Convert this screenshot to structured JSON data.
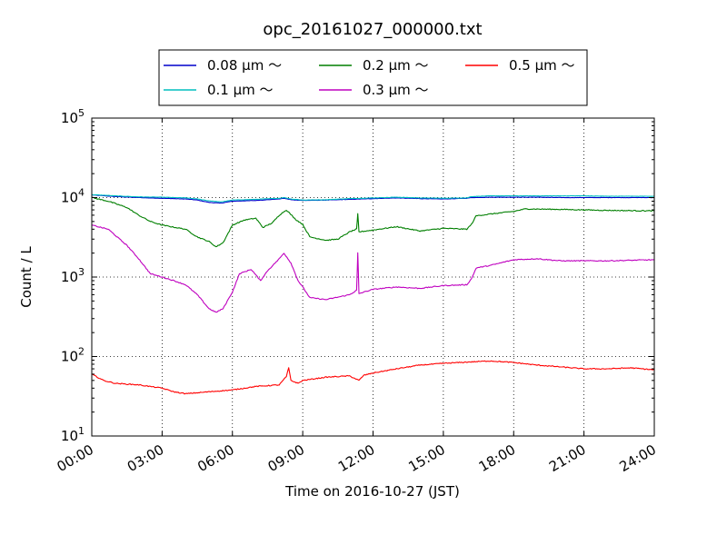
{
  "chart_data": {
    "type": "line",
    "title": "opc_20161027_000000.txt",
    "xlabel": "Time on 2016-10-27 (JST)",
    "ylabel": "Count / L",
    "x_unit": "hour of day",
    "xlim": [
      0,
      24
    ],
    "ylim": [
      10,
      100000
    ],
    "yscale": "log",
    "grid": true,
    "legend_position": "top-center",
    "x_tick_labels": [
      "00:00",
      "03:00",
      "06:00",
      "09:00",
      "12:00",
      "15:00",
      "18:00",
      "21:00",
      "24:00"
    ],
    "y_tick_labels": [
      {
        "base": "10",
        "exp": "1"
      },
      {
        "base": "10",
        "exp": "2"
      },
      {
        "base": "10",
        "exp": "3"
      },
      {
        "base": "10",
        "exp": "4"
      },
      {
        "base": "10",
        "exp": "5"
      }
    ],
    "series": [
      {
        "name": "0.08 μm ～",
        "color": "#0000cc",
        "points": [
          [
            0,
            10800
          ],
          [
            1,
            10300
          ],
          [
            2,
            10000
          ],
          [
            3,
            9800
          ],
          [
            4,
            9600
          ],
          [
            4.5,
            9300
          ],
          [
            5,
            8700
          ],
          [
            5.5,
            8500
          ],
          [
            6,
            9000
          ],
          [
            7,
            9200
          ],
          [
            8,
            9600
          ],
          [
            8.2,
            9800
          ],
          [
            8.5,
            9400
          ],
          [
            9,
            9200
          ],
          [
            10,
            9300
          ],
          [
            11,
            9500
          ],
          [
            12,
            9700
          ],
          [
            13,
            9900
          ],
          [
            14,
            9700
          ],
          [
            15,
            9600
          ],
          [
            16,
            9800
          ],
          [
            16.2,
            10000
          ],
          [
            17,
            10100
          ],
          [
            18,
            10100
          ],
          [
            19,
            10100
          ],
          [
            20,
            10000
          ],
          [
            21,
            10000
          ],
          [
            22,
            10000
          ],
          [
            23,
            10000
          ],
          [
            24,
            10000
          ]
        ]
      },
      {
        "name": "0.1 μm ～",
        "color": "#00bfbf",
        "points": [
          [
            0,
            10900
          ],
          [
            1,
            10500
          ],
          [
            2,
            10200
          ],
          [
            3,
            10100
          ],
          [
            4,
            9900
          ],
          [
            4.5,
            9600
          ],
          [
            5,
            9100
          ],
          [
            5.5,
            8800
          ],
          [
            6,
            9300
          ],
          [
            7,
            9500
          ],
          [
            8,
            9800
          ],
          [
            8.2,
            10000
          ],
          [
            8.5,
            9600
          ],
          [
            9,
            9300
          ],
          [
            10,
            9400
          ],
          [
            11,
            9700
          ],
          [
            12,
            9900
          ],
          [
            13,
            10100
          ],
          [
            14,
            9900
          ],
          [
            15,
            9800
          ],
          [
            16,
            9900
          ],
          [
            16.2,
            10300
          ],
          [
            17,
            10500
          ],
          [
            18,
            10500
          ],
          [
            19,
            10500
          ],
          [
            20,
            10500
          ],
          [
            21,
            10500
          ],
          [
            22,
            10400
          ],
          [
            23,
            10400
          ],
          [
            24,
            10400
          ]
        ]
      },
      {
        "name": "0.2 μm ～",
        "color": "#007f00",
        "points": [
          [
            0,
            10000
          ],
          [
            0.7,
            9000
          ],
          [
            1.5,
            7500
          ],
          [
            2,
            6000
          ],
          [
            2.5,
            5000
          ],
          [
            3,
            4500
          ],
          [
            4,
            4000
          ],
          [
            4.5,
            3200
          ],
          [
            5,
            2800
          ],
          [
            5.3,
            2400
          ],
          [
            5.6,
            2700
          ],
          [
            6,
            4500
          ],
          [
            6.5,
            5200
          ],
          [
            7,
            5500
          ],
          [
            7.3,
            4200
          ],
          [
            7.7,
            4800
          ],
          [
            8,
            6000
          ],
          [
            8.3,
            7000
          ],
          [
            8.7,
            5300
          ],
          [
            9,
            4600
          ],
          [
            9.3,
            3200
          ],
          [
            10,
            2900
          ],
          [
            10.5,
            3000
          ],
          [
            11,
            3700
          ],
          [
            11.3,
            4000
          ],
          [
            11.35,
            6200
          ],
          [
            11.4,
            3700
          ],
          [
            12,
            3900
          ],
          [
            13,
            4300
          ],
          [
            14,
            3800
          ],
          [
            15,
            4100
          ],
          [
            16,
            4000
          ],
          [
            16.2,
            4600
          ],
          [
            16.4,
            5900
          ],
          [
            17,
            6200
          ],
          [
            18,
            6700
          ],
          [
            18.5,
            7200
          ],
          [
            20,
            7100
          ],
          [
            22,
            6900
          ],
          [
            24,
            6800
          ]
        ]
      },
      {
        "name": "0.3 μm ～",
        "color": "#bf00bf",
        "points": [
          [
            0,
            4500
          ],
          [
            0.7,
            4000
          ],
          [
            1.5,
            2500
          ],
          [
            2,
            1700
          ],
          [
            2.5,
            1100
          ],
          [
            3,
            1000
          ],
          [
            3.5,
            900
          ],
          [
            4,
            800
          ],
          [
            4.5,
            600
          ],
          [
            5,
            400
          ],
          [
            5.3,
            360
          ],
          [
            5.6,
            400
          ],
          [
            6,
            650
          ],
          [
            6.3,
            1100
          ],
          [
            6.8,
            1250
          ],
          [
            7.2,
            900
          ],
          [
            7.5,
            1200
          ],
          [
            8,
            1700
          ],
          [
            8.2,
            2000
          ],
          [
            8.5,
            1500
          ],
          [
            8.8,
            900
          ],
          [
            9,
            750
          ],
          [
            9.3,
            550
          ],
          [
            10,
            520
          ],
          [
            11,
            600
          ],
          [
            11.3,
            680
          ],
          [
            11.35,
            2000
          ],
          [
            11.4,
            620
          ],
          [
            12,
            700
          ],
          [
            13,
            750
          ],
          [
            14,
            720
          ],
          [
            15,
            780
          ],
          [
            16,
            800
          ],
          [
            16.2,
            950
          ],
          [
            16.4,
            1300
          ],
          [
            17,
            1400
          ],
          [
            18,
            1650
          ],
          [
            19,
            1700
          ],
          [
            20,
            1600
          ],
          [
            22,
            1600
          ],
          [
            24,
            1650
          ]
        ]
      },
      {
        "name": "0.5 μm ～",
        "color": "#ff0000",
        "points": [
          [
            0,
            60
          ],
          [
            0.5,
            50
          ],
          [
            1,
            46
          ],
          [
            2,
            44
          ],
          [
            3,
            40
          ],
          [
            3.5,
            36
          ],
          [
            4,
            34
          ],
          [
            5,
            36
          ],
          [
            6,
            38
          ],
          [
            7,
            42
          ],
          [
            8,
            44
          ],
          [
            8.3,
            56
          ],
          [
            8.4,
            72
          ],
          [
            8.5,
            50
          ],
          [
            8.8,
            46
          ],
          [
            9,
            50
          ],
          [
            10,
            55
          ],
          [
            11,
            57
          ],
          [
            11.4,
            50
          ],
          [
            11.6,
            58
          ],
          [
            12,
            62
          ],
          [
            13,
            70
          ],
          [
            14,
            78
          ],
          [
            15,
            82
          ],
          [
            16,
            85
          ],
          [
            17,
            88
          ],
          [
            18,
            84
          ],
          [
            19,
            78
          ],
          [
            20,
            74
          ],
          [
            21,
            70
          ],
          [
            22,
            70
          ],
          [
            23,
            72
          ],
          [
            24,
            68
          ]
        ]
      }
    ]
  }
}
